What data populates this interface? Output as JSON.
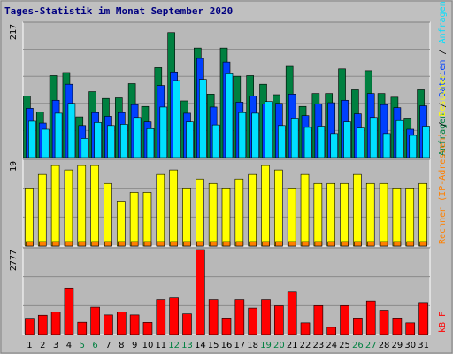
{
  "title": "Tages-Statistik im Monat September 2020",
  "colors": {
    "frame": "#c0c0c0",
    "panel_bg": "#b8b8b8",
    "gridline": "#8a8a8a",
    "title_text": "#000080",
    "hits": "#008040",
    "files": "#0040ff",
    "pages": "#00e0ff",
    "visits": "#ffff00",
    "sites": "#ff8000",
    "kbytes": "#ff0000",
    "weekend_day": "#008040",
    "weekday_day": "#000000"
  },
  "chart_data": [
    {
      "type": "bar",
      "panel": "top",
      "ymax_label": "217",
      "ylim": [
        0,
        217
      ],
      "categories": [
        "1",
        "2",
        "3",
        "4",
        "5",
        "6",
        "7",
        "8",
        "9",
        "10",
        "11",
        "12",
        "13",
        "14",
        "15",
        "16",
        "17",
        "18",
        "19",
        "20",
        "21",
        "22",
        "23",
        "24",
        "25",
        "26",
        "27",
        "28",
        "29",
        "30",
        "31"
      ],
      "series": [
        {
          "name": "Anfragen",
          "values": [
            100,
            74,
            133,
            138,
            66,
            107,
            96,
            97,
            120,
            83,
            146,
            203,
            92,
            178,
            103,
            178,
            132,
            133,
            119,
            102,
            148,
            83,
            104,
            104,
            144,
            110,
            141,
            104,
            98,
            64,
            110
          ]
        },
        {
          "name": "Dateien",
          "values": [
            80,
            56,
            93,
            119,
            52,
            73,
            67,
            73,
            86,
            58,
            117,
            139,
            72,
            161,
            82,
            155,
            90,
            100,
            87,
            88,
            103,
            68,
            87,
            89,
            93,
            71,
            104,
            86,
            81,
            46,
            84
          ]
        },
        {
          "name": "Anfragen",
          "values": [
            59,
            46,
            72,
            88,
            31,
            57,
            52,
            54,
            65,
            47,
            82,
            125,
            58,
            127,
            53,
            136,
            73,
            72,
            91,
            52,
            64,
            49,
            51,
            39,
            58,
            48,
            65,
            39,
            60,
            36,
            51
          ]
        }
      ]
    },
    {
      "type": "bar",
      "panel": "middle",
      "ymax_label": "19",
      "ylim": [
        0,
        19
      ],
      "categories": [
        "1",
        "2",
        "3",
        "4",
        "5",
        "6",
        "7",
        "8",
        "9",
        "10",
        "11",
        "12",
        "13",
        "14",
        "15",
        "16",
        "17",
        "18",
        "19",
        "20",
        "21",
        "22",
        "23",
        "24",
        "25",
        "26",
        "27",
        "28",
        "29",
        "30",
        "31"
      ],
      "series": [
        {
          "name": "Besucher",
          "values": [
            13,
            16,
            18,
            17,
            18,
            18,
            14,
            10,
            12,
            12,
            16,
            17,
            13,
            15,
            14,
            13,
            15,
            16,
            18,
            17,
            13,
            16,
            14,
            14,
            14,
            16,
            14,
            14,
            13,
            13,
            14
          ]
        },
        {
          "name": "Rechner (IP-Adressen)",
          "values": [
            1,
            1,
            1,
            1,
            1,
            1,
            1,
            1,
            1,
            1,
            1,
            1,
            1,
            1,
            1,
            1,
            1,
            1,
            1,
            1,
            1,
            1,
            1,
            1,
            1,
            1,
            1,
            1,
            1,
            1,
            1
          ]
        }
      ]
    },
    {
      "type": "bar",
      "panel": "bottom",
      "ymax_label": "2777",
      "ylim": [
        0,
        2777
      ],
      "categories": [
        "1",
        "2",
        "3",
        "4",
        "5",
        "6",
        "7",
        "8",
        "9",
        "10",
        "11",
        "12",
        "13",
        "14",
        "15",
        "16",
        "17",
        "18",
        "19",
        "20",
        "21",
        "22",
        "23",
        "24",
        "25",
        "26",
        "27",
        "28",
        "29",
        "30",
        "31"
      ],
      "series": [
        {
          "name": "kB F",
          "values": [
            530,
            630,
            735,
            1525,
            400,
            895,
            640,
            735,
            640,
            395,
            1140,
            1195,
            675,
            2777,
            1140,
            540,
            1140,
            865,
            1140,
            940,
            1395,
            380,
            945,
            235,
            945,
            540,
            1095,
            795,
            540,
            380,
            1045
          ]
        }
      ]
    }
  ],
  "days": [
    "1",
    "2",
    "3",
    "4",
    "5",
    "6",
    "7",
    "8",
    "9",
    "10",
    "11",
    "12",
    "13",
    "14",
    "15",
    "16",
    "17",
    "18",
    "19",
    "20",
    "21",
    "22",
    "23",
    "24",
    "25",
    "26",
    "27",
    "28",
    "29",
    "30",
    "31"
  ],
  "weekend_days": [
    "5",
    "6",
    "12",
    "13",
    "19",
    "20",
    "26",
    "27"
  ],
  "right_labels": {
    "top": [
      {
        "text": "Anfragen",
        "color": "#008040"
      },
      {
        "text": " / ",
        "color": "#000000"
      },
      {
        "text": "Dateien",
        "color": "#0040ff"
      },
      {
        "text": " / ",
        "color": "#000000"
      },
      {
        "text": "Anfragen",
        "color": "#00e0ff"
      }
    ],
    "middle": [
      {
        "text": "Rechner (IP-Adressen)",
        "color": "#ff8000"
      },
      {
        "text": " / ",
        "color": "#000000"
      },
      {
        "text": "Besucher",
        "color": "#ffff00"
      }
    ],
    "bottom": [
      {
        "text": "kB F",
        "color": "#ff0000"
      }
    ]
  }
}
